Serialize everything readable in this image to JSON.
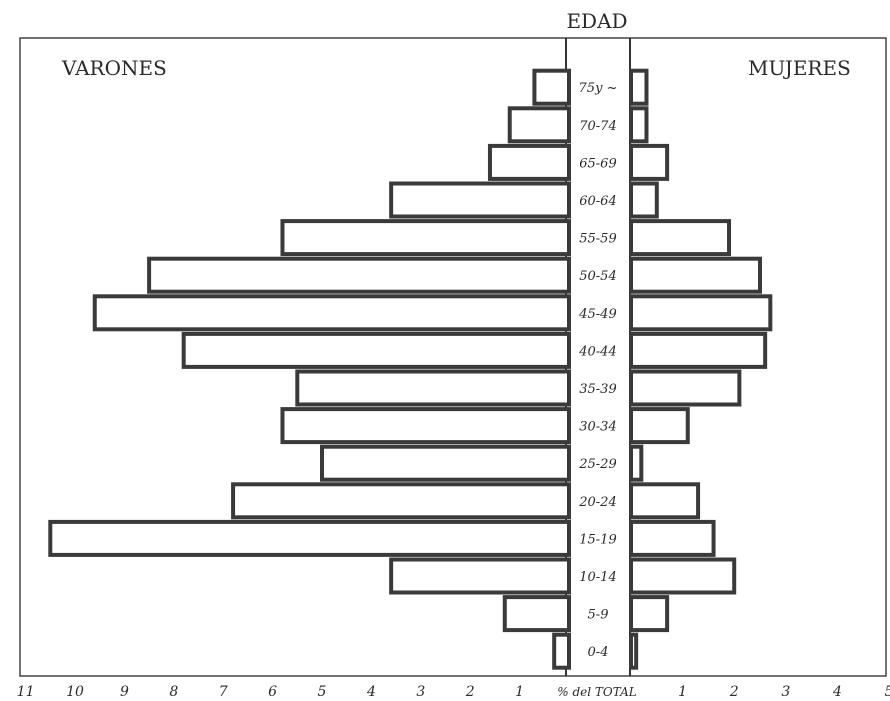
{
  "chart_data": {
    "type": "bar",
    "subtype": "population-pyramid",
    "title": "EDAD",
    "left_label": "VARONES",
    "right_label": "MUJERES",
    "xlabel": "% del TOTAL",
    "categories": [
      "0-4",
      "5-9",
      "10-14",
      "15-19",
      "20-24",
      "25-29",
      "30-34",
      "35-39",
      "40-44",
      "45-49",
      "50-54",
      "55-59",
      "60-64",
      "65-69",
      "70-74",
      "75 y más"
    ],
    "category_labels": [
      "0-4",
      "5-9",
      "10-14",
      "15-19",
      "20-24",
      "25-29",
      "30-34",
      "35-39",
      "40-44",
      "45-49",
      "50-54",
      "55-59",
      "60-64",
      "65-69",
      "70-74",
      "75y ~"
    ],
    "series": [
      {
        "name": "VARONES",
        "side": "left",
        "values": [
          0.3,
          1.3,
          3.6,
          10.5,
          6.8,
          5.0,
          5.8,
          5.5,
          7.8,
          9.6,
          8.5,
          5.8,
          3.6,
          1.6,
          1.2,
          0.7
        ]
      },
      {
        "name": "MUJERES",
        "side": "right",
        "values": [
          0.1,
          0.7,
          2.0,
          1.6,
          1.3,
          0.2,
          1.1,
          2.1,
          2.6,
          2.7,
          2.5,
          1.9,
          0.5,
          0.7,
          0.3,
          0.3
        ]
      }
    ],
    "left_ticks": [
      "11",
      "10",
      "9",
      "8",
      "7",
      "6",
      "5",
      "4",
      "3",
      "2",
      "1"
    ],
    "right_ticks": [
      "1",
      "2",
      "3",
      "4",
      "5"
    ],
    "left_xlim": [
      0,
      11
    ],
    "right_xlim": [
      0,
      5
    ],
    "grid": false,
    "colors": {
      "bar_stroke": "#3a3a3a",
      "background": "#ffffff"
    }
  }
}
